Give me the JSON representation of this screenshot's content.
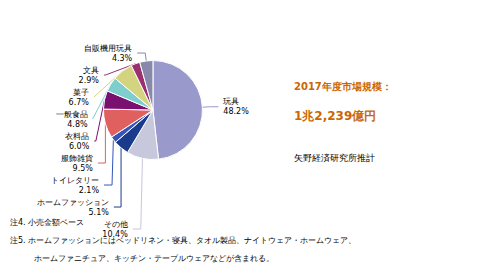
{
  "chart_data": {
    "type": "pie",
    "categories": [
      "玩具",
      "その他",
      "ホームファッション",
      "トイレタリー",
      "服飾雑貨",
      "衣料品",
      "一般食品",
      "菓子",
      "文具",
      "自販機用玩具"
    ],
    "values": [
      48.2,
      10.4,
      5.1,
      2.1,
      9.5,
      6.0,
      4.8,
      6.7,
      2.9,
      4.3
    ],
    "value_labels": [
      "48.2%",
      "10.4%",
      "5.1%",
      "2.1%",
      "9.5%",
      "6.0%",
      "4.8%",
      "6.7%",
      "2.9%",
      "4.3%"
    ],
    "colors": [
      "#9999cc",
      "#c8c8dc",
      "#1a3a8c",
      "#3355bb",
      "#e06060",
      "#7a1070",
      "#7ecece",
      "#d4d480",
      "#9b3070",
      "#8888aa"
    ],
    "data_labels": true,
    "annotations": [
      {
        "text": "2017年度市場規模：",
        "color": "#cc6600"
      },
      {
        "text": "1兆2,239億円",
        "color": "#cc6600"
      },
      {
        "text": "矢野経済研究所推計",
        "color": "#000000"
      },
      {
        "text": "注4. 小売金額ベース",
        "color": "#000000"
      },
      {
        "text": "注5. ホームファッションにはベッドリネン・寝具、タオル製品、ナイトウェア・ホームウェア、",
        "color": "#000000"
      },
      {
        "text": "　　　ホームファニチュア、キッチン・テーブルウェアなどが含まれる。",
        "color": "#000000"
      }
    ]
  }
}
